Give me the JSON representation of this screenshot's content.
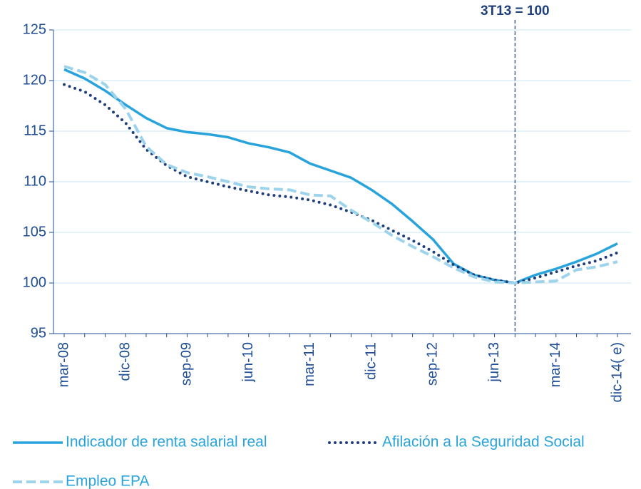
{
  "chart_data": {
    "type": "line",
    "categories": [
      "mar-08",
      null,
      null,
      "dic-08",
      null,
      null,
      "sep-09",
      null,
      null,
      "jun-10",
      null,
      null,
      "mar-11",
      null,
      null,
      "dic-11",
      null,
      null,
      "sep-12",
      null,
      null,
      "jun-13",
      null,
      null,
      "mar-14",
      null,
      null,
      "dic-14( e)"
    ],
    "series": [
      {
        "name": "Indicador de renta salarial real",
        "color": "#29a3dc",
        "style": "solid",
        "values": [
          121.1,
          120.2,
          119.0,
          117.6,
          116.3,
          115.3,
          114.9,
          114.7,
          114.4,
          113.8,
          113.4,
          112.9,
          111.8,
          111.1,
          110.4,
          109.2,
          107.8,
          106.1,
          104.3,
          101.9,
          100.8,
          100.3,
          100,
          100.8,
          101.4,
          102.1,
          102.9,
          103.9
        ]
      },
      {
        "name": "Afilación a la Seguridad Social",
        "color": "#1f3f7a",
        "style": "dotted",
        "values": [
          119.6,
          118.9,
          117.6,
          115.8,
          113.2,
          111.6,
          110.5,
          110.0,
          109.5,
          109.1,
          108.7,
          108.5,
          108.2,
          107.7,
          107.0,
          106.2,
          105.2,
          104.2,
          103.1,
          101.8,
          100.8,
          100.3,
          100,
          100.5,
          101.1,
          101.7,
          102.2,
          103.0
        ]
      },
      {
        "name": "Empleo EPA",
        "color": "#9dd4ec",
        "style": "dashed",
        "values": [
          121.4,
          120.8,
          119.6,
          117.2,
          113.5,
          111.7,
          110.9,
          110.5,
          110.0,
          109.5,
          109.3,
          109.2,
          108.7,
          108.6,
          107.2,
          106.0,
          104.7,
          103.6,
          102.6,
          101.5,
          100.6,
          100.1,
          100,
          100.1,
          100.2,
          101.3,
          101.6,
          102.1
        ]
      }
    ],
    "ylim": [
      95,
      125
    ],
    "yticks": [
      95,
      100,
      105,
      110,
      115,
      120,
      125
    ],
    "grid": true,
    "reference_line": {
      "category_index": 22,
      "label": "3T13 = 100"
    }
  }
}
